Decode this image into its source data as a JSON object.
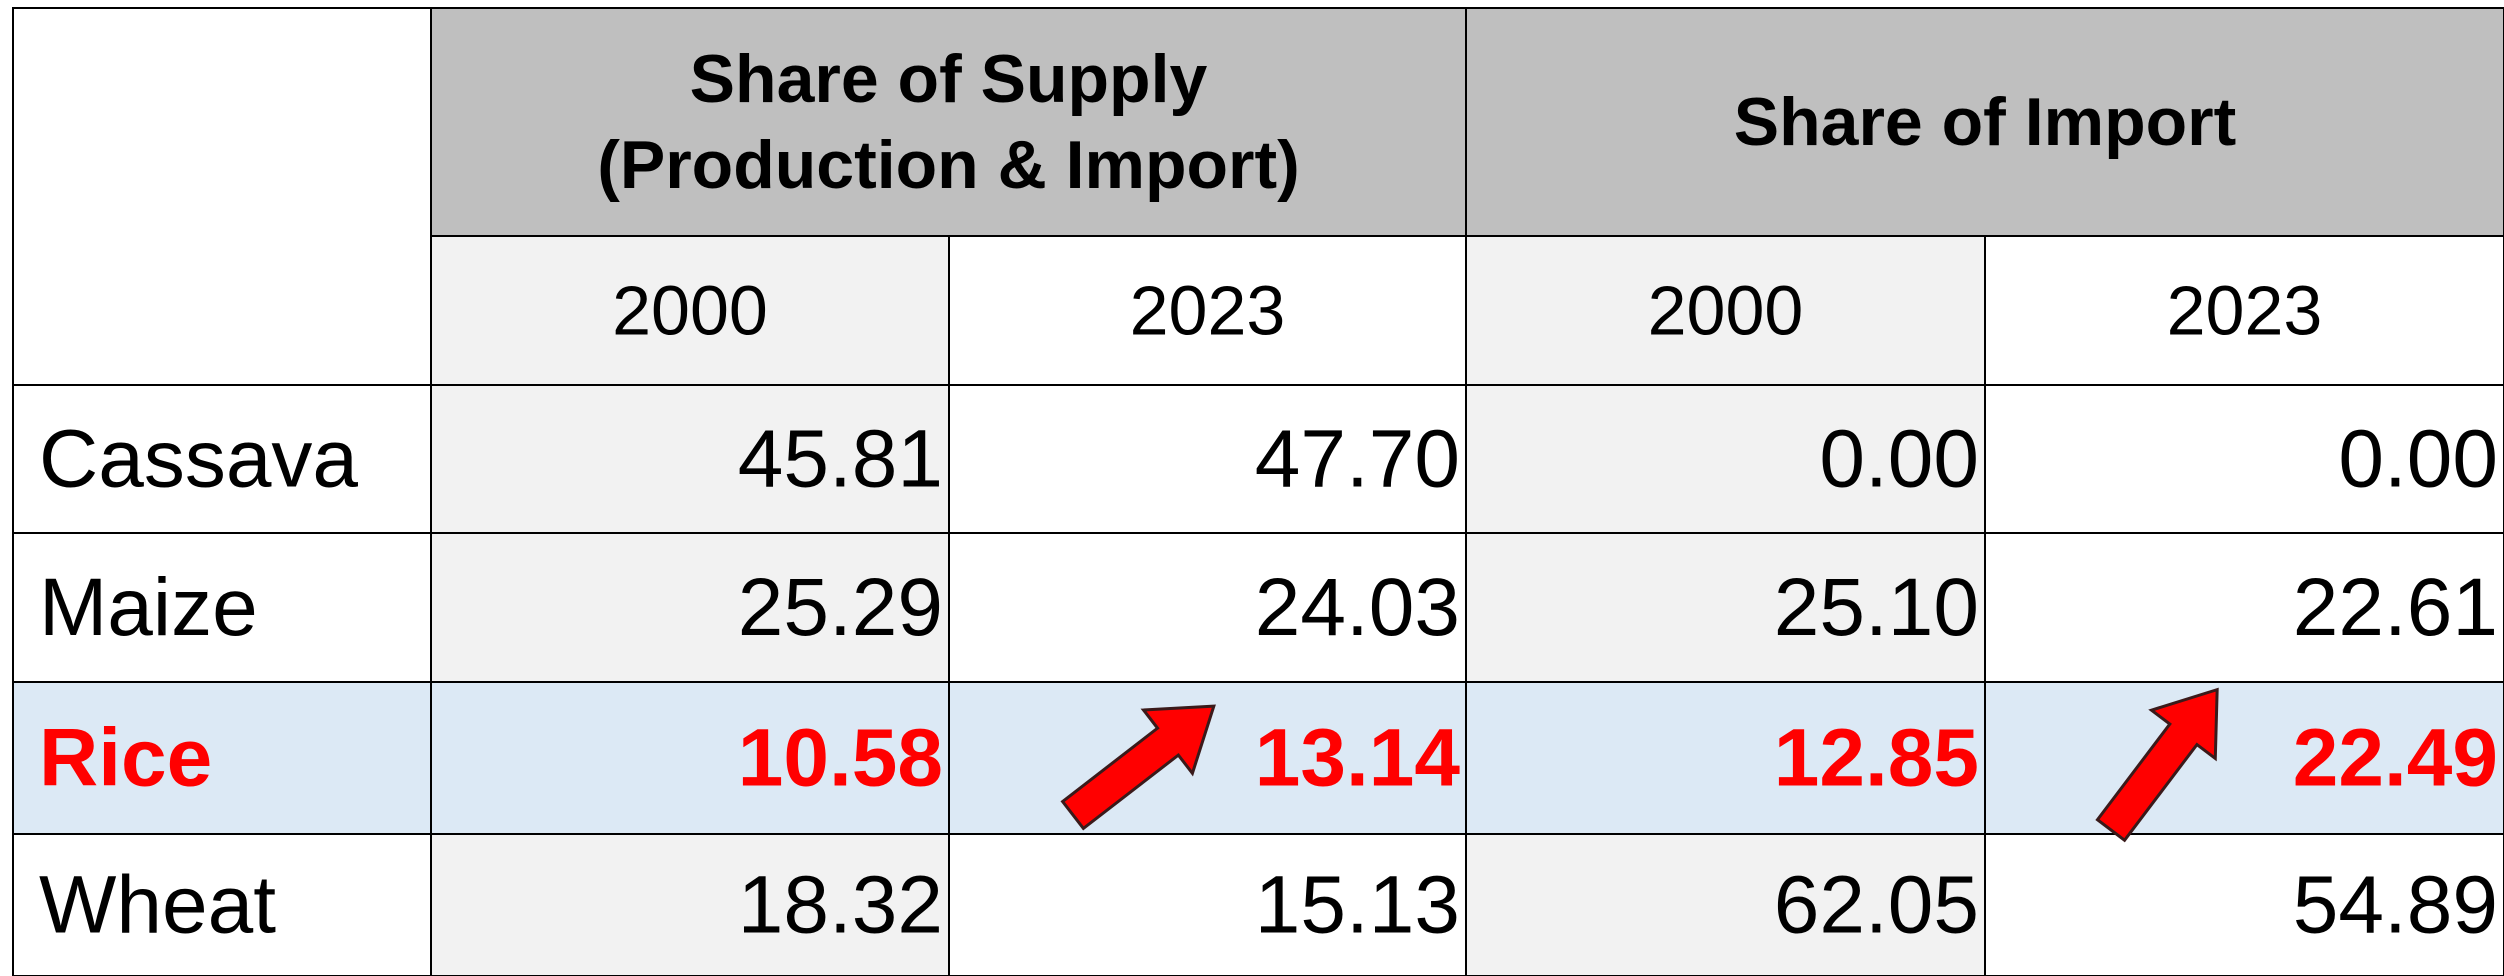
{
  "table": {
    "column_groups": [
      {
        "lines": [
          "Share of Supply",
          "(Production & Import)"
        ]
      },
      {
        "lines": [
          "Share of Import"
        ]
      }
    ],
    "years": [
      "2000",
      "2023",
      "2000",
      "2023"
    ],
    "rows": [
      {
        "label": "Cassava",
        "values": [
          "45.81",
          "47.70",
          "0.00",
          "0.00"
        ]
      },
      {
        "label": "Maize",
        "values": [
          "25.29",
          "24.03",
          "25.10",
          "22.61"
        ]
      },
      {
        "label": "Rice",
        "values": [
          "10.58",
          "13.14",
          "12.85",
          "22.49"
        ]
      },
      {
        "label": "Wheat",
        "values": [
          "18.32",
          "15.13",
          "62.05",
          "54.89"
        ]
      }
    ],
    "highlight_row": 2,
    "highlight_color": "#dce9f5",
    "highlight_text_color": "#ff0000"
  }
}
